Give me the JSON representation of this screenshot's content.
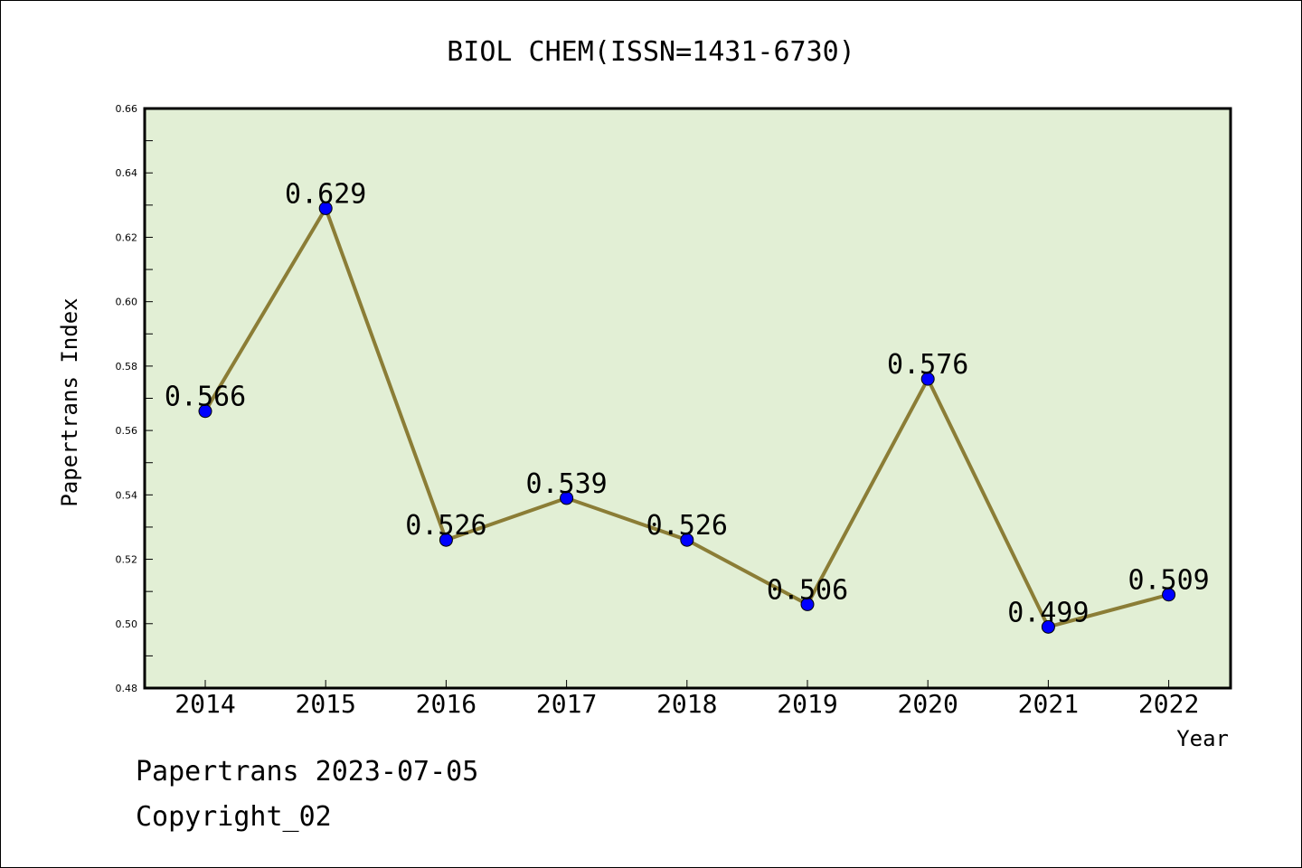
{
  "chart_data": {
    "type": "line",
    "title": "BIOL CHEM(ISSN=1431-6730)",
    "xlabel": "Year",
    "ylabel": "Papertrans Index",
    "categories": [
      "2014",
      "2015",
      "2016",
      "2017",
      "2018",
      "2019",
      "2020",
      "2021",
      "2022"
    ],
    "values": [
      0.566,
      0.629,
      0.526,
      0.539,
      0.526,
      0.506,
      0.576,
      0.499,
      0.509
    ],
    "data_labels": [
      "0.566",
      "0.629",
      "0.526",
      "0.539",
      "0.526",
      "0.506",
      "0.576",
      "0.499",
      "0.509"
    ],
    "ylim": [
      0.48,
      0.66
    ],
    "yticks": [
      "0.48",
      "0.50",
      "0.52",
      "0.54",
      "0.56",
      "0.58",
      "0.60",
      "0.62",
      "0.64",
      "0.66"
    ],
    "grid": false,
    "colors": {
      "plot_background": "#e2efd5",
      "line": "#8b7d36",
      "marker": "#0000ff"
    }
  },
  "footer": {
    "line1": "Papertrans 2023-07-05",
    "line2": "Copyright_02"
  }
}
